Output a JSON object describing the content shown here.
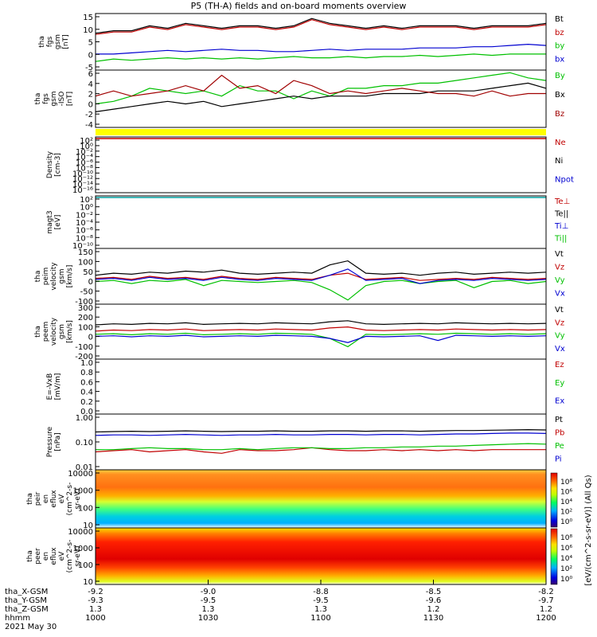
{
  "title": "P5 (TH-A) fields and on-board moments overview",
  "time_axis": {
    "rows": [
      {
        "label": "tha_X-GSM",
        "values": [
          "-9.2",
          "-9.0",
          "-8.8",
          "-8.5",
          "-8.2"
        ]
      },
      {
        "label": "tha_Y-GSM",
        "values": [
          "-9.3",
          "-9.5",
          "-9.5",
          "-9.6",
          "-9.7"
        ]
      },
      {
        "label": "tha_Z-GSM",
        "values": [
          "1.3",
          "1.3",
          "1.3",
          "1.2",
          "1.2"
        ]
      },
      {
        "label": "hhmm",
        "values": [
          "1000",
          "1030",
          "1100",
          "1130",
          "1200"
        ]
      }
    ],
    "date": "2021 May 30"
  },
  "colorbar": {
    "label": "[eV/(cm^2-s-sr-eV)] (All Qs)",
    "top_ticks": [
      "10⁸",
      "10⁶",
      "10⁴",
      "10²",
      "10⁰"
    ],
    "bottom_ticks": [
      "10⁸",
      "10⁶",
      "10⁴",
      "10²",
      "10⁰"
    ]
  },
  "chart_data": [
    {
      "type": "line",
      "ylabel": [
        "tha",
        "fgs",
        "gsm",
        "[nT]"
      ],
      "yticks": [
        "15",
        "10",
        "5",
        "0",
        "-5"
      ],
      "ylim": [
        -7,
        16
      ],
      "series": [
        {
          "name": "Bt",
          "color": "#000000",
          "values": [
            8,
            9,
            9,
            11,
            10,
            12,
            11,
            10,
            11,
            11,
            10,
            11,
            14,
            12,
            11,
            10,
            11,
            10,
            11,
            11,
            11,
            10,
            11,
            11,
            11,
            12
          ]
        },
        {
          "name": "bz",
          "color": "#c00000",
          "values": [
            7.5,
            8.5,
            8.5,
            10.5,
            9.5,
            11.5,
            10.5,
            9.5,
            10.5,
            10.5,
            9.5,
            10.5,
            13.5,
            11.5,
            10.5,
            9.5,
            10.5,
            9.5,
            10.5,
            10.5,
            10.5,
            9.5,
            10.5,
            10.5,
            10.5,
            11.5
          ]
        },
        {
          "name": "by",
          "color": "#00c000",
          "values": [
            -3.5,
            -2.5,
            -3,
            -2.5,
            -2,
            -2.5,
            -2,
            -2.5,
            -2,
            -2.5,
            -2,
            -1.5,
            -2,
            -2,
            -1.5,
            -2,
            -1.5,
            -1.5,
            -1,
            -1.5,
            -1,
            -0.5,
            -1,
            -0.5,
            -0.5,
            -0.5
          ]
        },
        {
          "name": "bx",
          "color": "#0000d0",
          "values": [
            -0.5,
            -0.5,
            0,
            0.5,
            1,
            0.5,
            1,
            1.5,
            1,
            1,
            0.5,
            0.5,
            1,
            1.5,
            1,
            1.5,
            1.5,
            1.5,
            2,
            2,
            2,
            2.5,
            2.5,
            3,
            3.5,
            3
          ]
        }
      ]
    },
    {
      "type": "line",
      "ylabel": [
        "tha",
        "fgs",
        "gsm",
        "-ISO",
        "[nT]"
      ],
      "yticks": [
        "6",
        "4",
        "2",
        "0",
        "-2",
        "-4"
      ],
      "ylim": [
        -5,
        6
      ],
      "series": [
        {
          "name": "By",
          "color": "#00c000",
          "values": [
            -0.5,
            0,
            1,
            2.5,
            2,
            1.5,
            2,
            1,
            3,
            2,
            2,
            0.5,
            2,
            1,
            2.5,
            2.5,
            3,
            3,
            3.5,
            3.5,
            4,
            4.5,
            5,
            5.5,
            4.5,
            4
          ]
        },
        {
          "name": "Bx",
          "color": "#000000",
          "values": [
            -2,
            -1.5,
            -1,
            -0.5,
            0,
            -0.5,
            0,
            -1,
            -0.5,
            0,
            0.5,
            1,
            0.5,
            1,
            1,
            1,
            1.5,
            1.5,
            1.5,
            2,
            2,
            2,
            2.5,
            3,
            3.5,
            2.5
          ]
        },
        {
          "name": "Bz",
          "color": "#a00000",
          "values": [
            1,
            2,
            1,
            1.5,
            2,
            3,
            2,
            5,
            2.5,
            3,
            1.5,
            4,
            3,
            1.5,
            2,
            1.5,
            2,
            2.5,
            2,
            1.5,
            1.5,
            1,
            2,
            1,
            1.5,
            1.5
          ]
        }
      ]
    },
    {
      "type": "line",
      "ylabel": [
        "Density",
        "[cm-3]"
      ],
      "yticks": [
        "10²",
        "10⁰",
        "10⁻²",
        "10⁻⁴",
        "10⁻⁶",
        "10⁻⁸",
        "10⁻¹⁰",
        "10⁻¹²",
        "10⁻¹⁴",
        "10⁻¹⁶"
      ],
      "scale": "log",
      "series": [
        {
          "name": "Ne",
          "color": "#c00000"
        },
        {
          "name": "Ni",
          "color": "#000000"
        },
        {
          "name": "Npot",
          "color": "#0000d0"
        }
      ]
    },
    {
      "type": "line",
      "ylabel": [
        "magt3",
        "[eV]"
      ],
      "yticks": [
        "10²",
        "10⁰",
        "10⁻²",
        "10⁻⁴",
        "10⁻⁶",
        "10⁻⁸",
        "10⁻¹⁰"
      ],
      "scale": "log",
      "series": [
        {
          "name": "Te⊥",
          "color": "#c00000"
        },
        {
          "name": "Te||",
          "color": "#000000"
        },
        {
          "name": "Ti⊥",
          "color": "#0000d0"
        },
        {
          "name": "Ti||",
          "color": "#00c000"
        }
      ]
    },
    {
      "type": "line",
      "ylabel": [
        "tha",
        "peim",
        "velocity",
        "gsm",
        "[km/s]"
      ],
      "yticks": [
        "150",
        "100",
        "50",
        "0",
        "-50",
        "-100"
      ],
      "ylim": [
        -110,
        160
      ],
      "series": [
        {
          "name": "Vt",
          "color": "#000000",
          "values": [
            30,
            40,
            35,
            45,
            40,
            50,
            45,
            55,
            40,
            35,
            40,
            45,
            40,
            80,
            100,
            40,
            35,
            40,
            30,
            40,
            45,
            35,
            40,
            45,
            40,
            45
          ]
        },
        {
          "name": "Vz",
          "color": "#c00000",
          "values": [
            15,
            20,
            10,
            25,
            15,
            20,
            10,
            25,
            15,
            10,
            20,
            15,
            10,
            30,
            40,
            10,
            15,
            20,
            5,
            10,
            15,
            10,
            20,
            15,
            10,
            15
          ]
        },
        {
          "name": "Vy",
          "color": "#00c000",
          "values": [
            0,
            5,
            -10,
            5,
            0,
            10,
            -20,
            5,
            0,
            -5,
            0,
            5,
            -5,
            -40,
            -90,
            -20,
            0,
            5,
            -10,
            0,
            5,
            -30,
            0,
            5,
            -10,
            0
          ]
        },
        {
          "name": "Vx",
          "color": "#0000d0",
          "values": [
            10,
            15,
            5,
            20,
            10,
            15,
            5,
            20,
            10,
            5,
            15,
            10,
            5,
            30,
            60,
            5,
            10,
            15,
            -10,
            5,
            10,
            5,
            15,
            10,
            5,
            10
          ]
        }
      ]
    },
    {
      "type": "line",
      "ylabel": [
        "tha",
        "peem",
        "velocity",
        "gsm",
        "[km/s]"
      ],
      "yticks": [
        "300",
        "200",
        "100",
        "0",
        "-100",
        "-200"
      ],
      "ylim": [
        -220,
        310
      ],
      "series": [
        {
          "name": "Vt",
          "color": "#000000",
          "values": [
            110,
            120,
            115,
            125,
            120,
            130,
            115,
            120,
            125,
            120,
            130,
            125,
            120,
            140,
            150,
            120,
            115,
            120,
            125,
            120,
            130,
            125,
            120,
            125,
            120,
            125
          ]
        },
        {
          "name": "Vz",
          "color": "#c00000",
          "values": [
            50,
            60,
            55,
            65,
            60,
            70,
            55,
            60,
            65,
            60,
            70,
            65,
            60,
            80,
            90,
            60,
            55,
            60,
            65,
            60,
            70,
            65,
            60,
            65,
            60,
            65
          ]
        },
        {
          "name": "Vy",
          "color": "#00c000",
          "values": [
            20,
            25,
            15,
            25,
            20,
            30,
            15,
            20,
            25,
            20,
            30,
            25,
            20,
            -20,
            -100,
            20,
            15,
            20,
            25,
            20,
            30,
            25,
            20,
            25,
            20,
            25
          ]
        },
        {
          "name": "Vx",
          "color": "#0000d0",
          "values": [
            0,
            5,
            -5,
            5,
            0,
            10,
            -5,
            0,
            5,
            0,
            10,
            5,
            0,
            -20,
            -60,
            0,
            -5,
            0,
            5,
            -40,
            10,
            5,
            0,
            5,
            0,
            5
          ]
        }
      ]
    },
    {
      "type": "line",
      "ylabel": [
        "E=-VxB",
        "[mV/m]"
      ],
      "yticks": [
        "1.0",
        "0.8",
        "0.6",
        "0.4",
        "0.2",
        "0.0"
      ],
      "ylim": [
        0,
        1
      ],
      "series": [
        {
          "name": "Ez",
          "color": "#c00000"
        },
        {
          "name": "Ey",
          "color": "#00c000"
        },
        {
          "name": "Ex",
          "color": "#0000d0"
        }
      ]
    },
    {
      "type": "line",
      "ylabel": [
        "Pressure",
        "[nPa]"
      ],
      "yticks": [
        "1.00",
        "0.10",
        "0.01"
      ],
      "scale": "log",
      "ylim": [
        0.007,
        1.6
      ],
      "series": [
        {
          "name": "Pt",
          "color": "#000000",
          "values": [
            0.28,
            0.29,
            0.3,
            0.29,
            0.3,
            0.31,
            0.3,
            0.29,
            0.3,
            0.3,
            0.31,
            0.3,
            0.3,
            0.31,
            0.31,
            0.3,
            0.31,
            0.31,
            0.3,
            0.31,
            0.32,
            0.32,
            0.33,
            0.34,
            0.35,
            0.34
          ]
        },
        {
          "name": "Pb",
          "color": "#c00000",
          "values": [
            0.04,
            0.045,
            0.05,
            0.04,
            0.045,
            0.05,
            0.04,
            0.035,
            0.05,
            0.045,
            0.045,
            0.05,
            0.06,
            0.05,
            0.045,
            0.045,
            0.05,
            0.045,
            0.05,
            0.045,
            0.05,
            0.045,
            0.05,
            0.05,
            0.05,
            0.05
          ]
        },
        {
          "name": "Pe",
          "color": "#00c000",
          "values": [
            0.05,
            0.05,
            0.055,
            0.06,
            0.055,
            0.055,
            0.05,
            0.05,
            0.055,
            0.05,
            0.055,
            0.06,
            0.06,
            0.055,
            0.055,
            0.06,
            0.06,
            0.065,
            0.065,
            0.07,
            0.07,
            0.075,
            0.08,
            0.085,
            0.09,
            0.085
          ]
        },
        {
          "name": "Pi",
          "color": "#0000d0",
          "values": [
            0.2,
            0.21,
            0.21,
            0.2,
            0.21,
            0.22,
            0.21,
            0.2,
            0.21,
            0.21,
            0.22,
            0.21,
            0.21,
            0.22,
            0.22,
            0.21,
            0.22,
            0.22,
            0.21,
            0.22,
            0.23,
            0.23,
            0.24,
            0.25,
            0.25,
            0.24
          ]
        }
      ]
    },
    {
      "type": "heatmap",
      "ylabel": [
        "tha",
        "peir",
        "en",
        "eflux",
        "eV",
        "(cm^2-s-",
        "sr-eV)"
      ],
      "yticks": [
        "10000",
        "1000",
        "100",
        "10"
      ],
      "scale": "log"
    },
    {
      "type": "heatmap",
      "ylabel": [
        "tha",
        "peer",
        "en",
        "eflux",
        "eV",
        "(cm^2-s-",
        "sr-eV)"
      ],
      "yticks": [
        "10000",
        "1000",
        "100",
        "10"
      ],
      "scale": "log"
    }
  ]
}
